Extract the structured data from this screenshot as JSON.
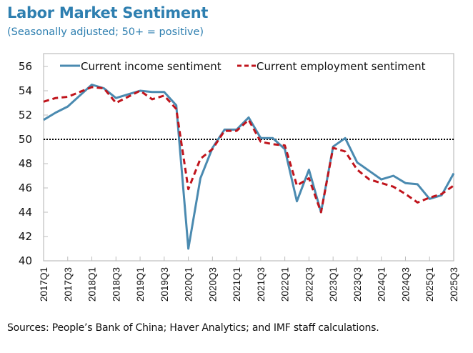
{
  "chart_data": {
    "type": "line",
    "title": "Labor Market Sentiment",
    "subtitle": "(Seasonally adjusted; 50+ = positive)",
    "xlabel": "",
    "ylabel": "",
    "ylim": [
      40,
      56
    ],
    "yticks": [
      "40",
      "42",
      "44",
      "46",
      "48",
      "50",
      "52",
      "54",
      "56"
    ],
    "reference_line": 50,
    "x": [
      "2017Q1",
      "2017Q2",
      "2017Q3",
      "2017Q4",
      "2018Q1",
      "2018Q2",
      "2018Q3",
      "2018Q4",
      "2019Q1",
      "2019Q2",
      "2019Q3",
      "2019Q4",
      "2020Q1",
      "2020Q2",
      "2020Q3",
      "2020Q4",
      "2021Q1",
      "2021Q2",
      "2021Q3",
      "2021Q4",
      "2022Q1",
      "2022Q2",
      "2022Q3",
      "2022Q4",
      "2023Q1",
      "2023Q2",
      "2023Q3",
      "2023Q4",
      "2024Q1",
      "2024Q2",
      "2024Q3",
      "2024Q4",
      "2025Q1",
      "2025Q2",
      "2025Q3"
    ],
    "xtick_labels": [
      "2017Q1",
      "2017Q3",
      "2018Q1",
      "2018Q3",
      "2019Q1",
      "2019Q3",
      "2020Q1",
      "2020Q3",
      "2021Q1",
      "2021Q3",
      "2022Q1",
      "2022Q3",
      "2023Q1",
      "2023Q3",
      "2024Q1",
      "2024Q3",
      "2025Q1",
      "2025Q3"
    ],
    "legend_position": "top",
    "series": [
      {
        "name": "Current income sentiment",
        "color": "#4a8ab0",
        "style": "solid",
        "values": [
          51.6,
          52.2,
          52.7,
          53.6,
          54.5,
          54.2,
          53.4,
          53.7,
          54.0,
          53.9,
          53.9,
          52.8,
          41.0,
          46.8,
          49.3,
          50.8,
          50.8,
          51.8,
          50.1,
          50.1,
          49.2,
          44.9,
          47.5,
          44.0,
          49.4,
          50.1,
          48.1,
          47.4,
          46.7,
          47.0,
          46.4,
          46.3,
          45.1,
          45.4,
          47.2
        ]
      },
      {
        "name": "Current employment sentiment",
        "color": "#c0141c",
        "style": "dashed",
        "values": [
          53.1,
          53.4,
          53.5,
          53.9,
          54.3,
          54.2,
          53.0,
          53.5,
          54.0,
          53.3,
          53.6,
          52.5,
          45.9,
          48.4,
          49.2,
          50.7,
          50.7,
          51.6,
          49.8,
          49.6,
          49.5,
          46.2,
          46.8,
          44.0,
          49.3,
          49.0,
          47.5,
          46.7,
          46.4,
          46.1,
          45.5,
          44.8,
          45.2,
          45.5,
          46.2
        ]
      }
    ]
  },
  "source": "Sources: People’s Bank of China; Haver Analytics; and IMF staff calculations."
}
